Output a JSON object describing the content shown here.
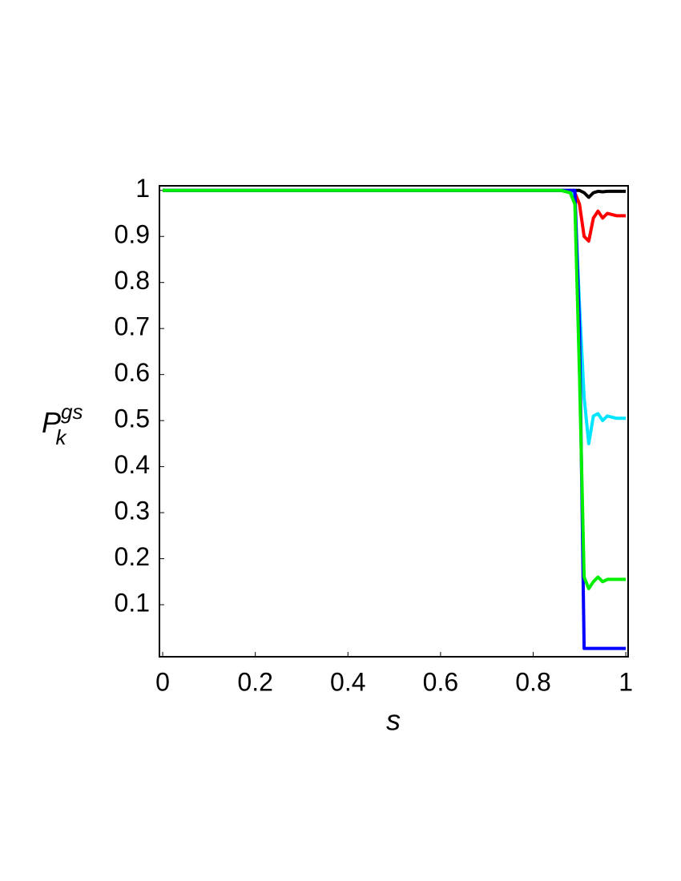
{
  "chart_data": {
    "type": "line",
    "xlabel": "s",
    "ylabel": "P",
    "ylabel_sub": "k",
    "ylabel_sup": "gs",
    "x": [
      0,
      0.86,
      0.88,
      0.89,
      0.9,
      0.91,
      0.92,
      0.93,
      0.94,
      0.95,
      0.96,
      0.98,
      1.0
    ],
    "series": [
      {
        "color": "#000000",
        "values": [
          1,
          1,
          1,
          1,
          1,
          0.995,
          0.985,
          0.995,
          0.998,
          0.997,
          0.998,
          0.998,
          0.998
        ]
      },
      {
        "color": "#ff0000",
        "values": [
          1,
          1,
          1,
          0.995,
          0.97,
          0.9,
          0.89,
          0.94,
          0.955,
          0.94,
          0.95,
          0.945,
          0.945
        ]
      },
      {
        "color": "#00e5ff",
        "values": [
          1,
          1,
          1,
          0.98,
          0.75,
          0.55,
          0.45,
          0.51,
          0.515,
          0.5,
          0.51,
          0.505,
          0.505
        ]
      },
      {
        "color": "#0000ff",
        "values": [
          1,
          1,
          1,
          1,
          0.7,
          0.005,
          0.005,
          0.005,
          0.005,
          0.005,
          0.005,
          0.005,
          0.005
        ]
      },
      {
        "color": "#00ee00",
        "values": [
          1,
          1,
          0.995,
          0.97,
          0.6,
          0.16,
          0.135,
          0.15,
          0.16,
          0.15,
          0.155,
          0.155,
          0.155
        ]
      }
    ],
    "xlim": [
      -0.007,
      1.005
    ],
    "ylim": [
      -0.013,
      1.01
    ],
    "xticks": [
      0,
      0.2,
      0.4,
      0.6,
      0.8,
      1
    ],
    "yticks": [
      0.1,
      0.2,
      0.3,
      0.4,
      0.5,
      0.6,
      0.7,
      0.8,
      0.9,
      1
    ]
  }
}
